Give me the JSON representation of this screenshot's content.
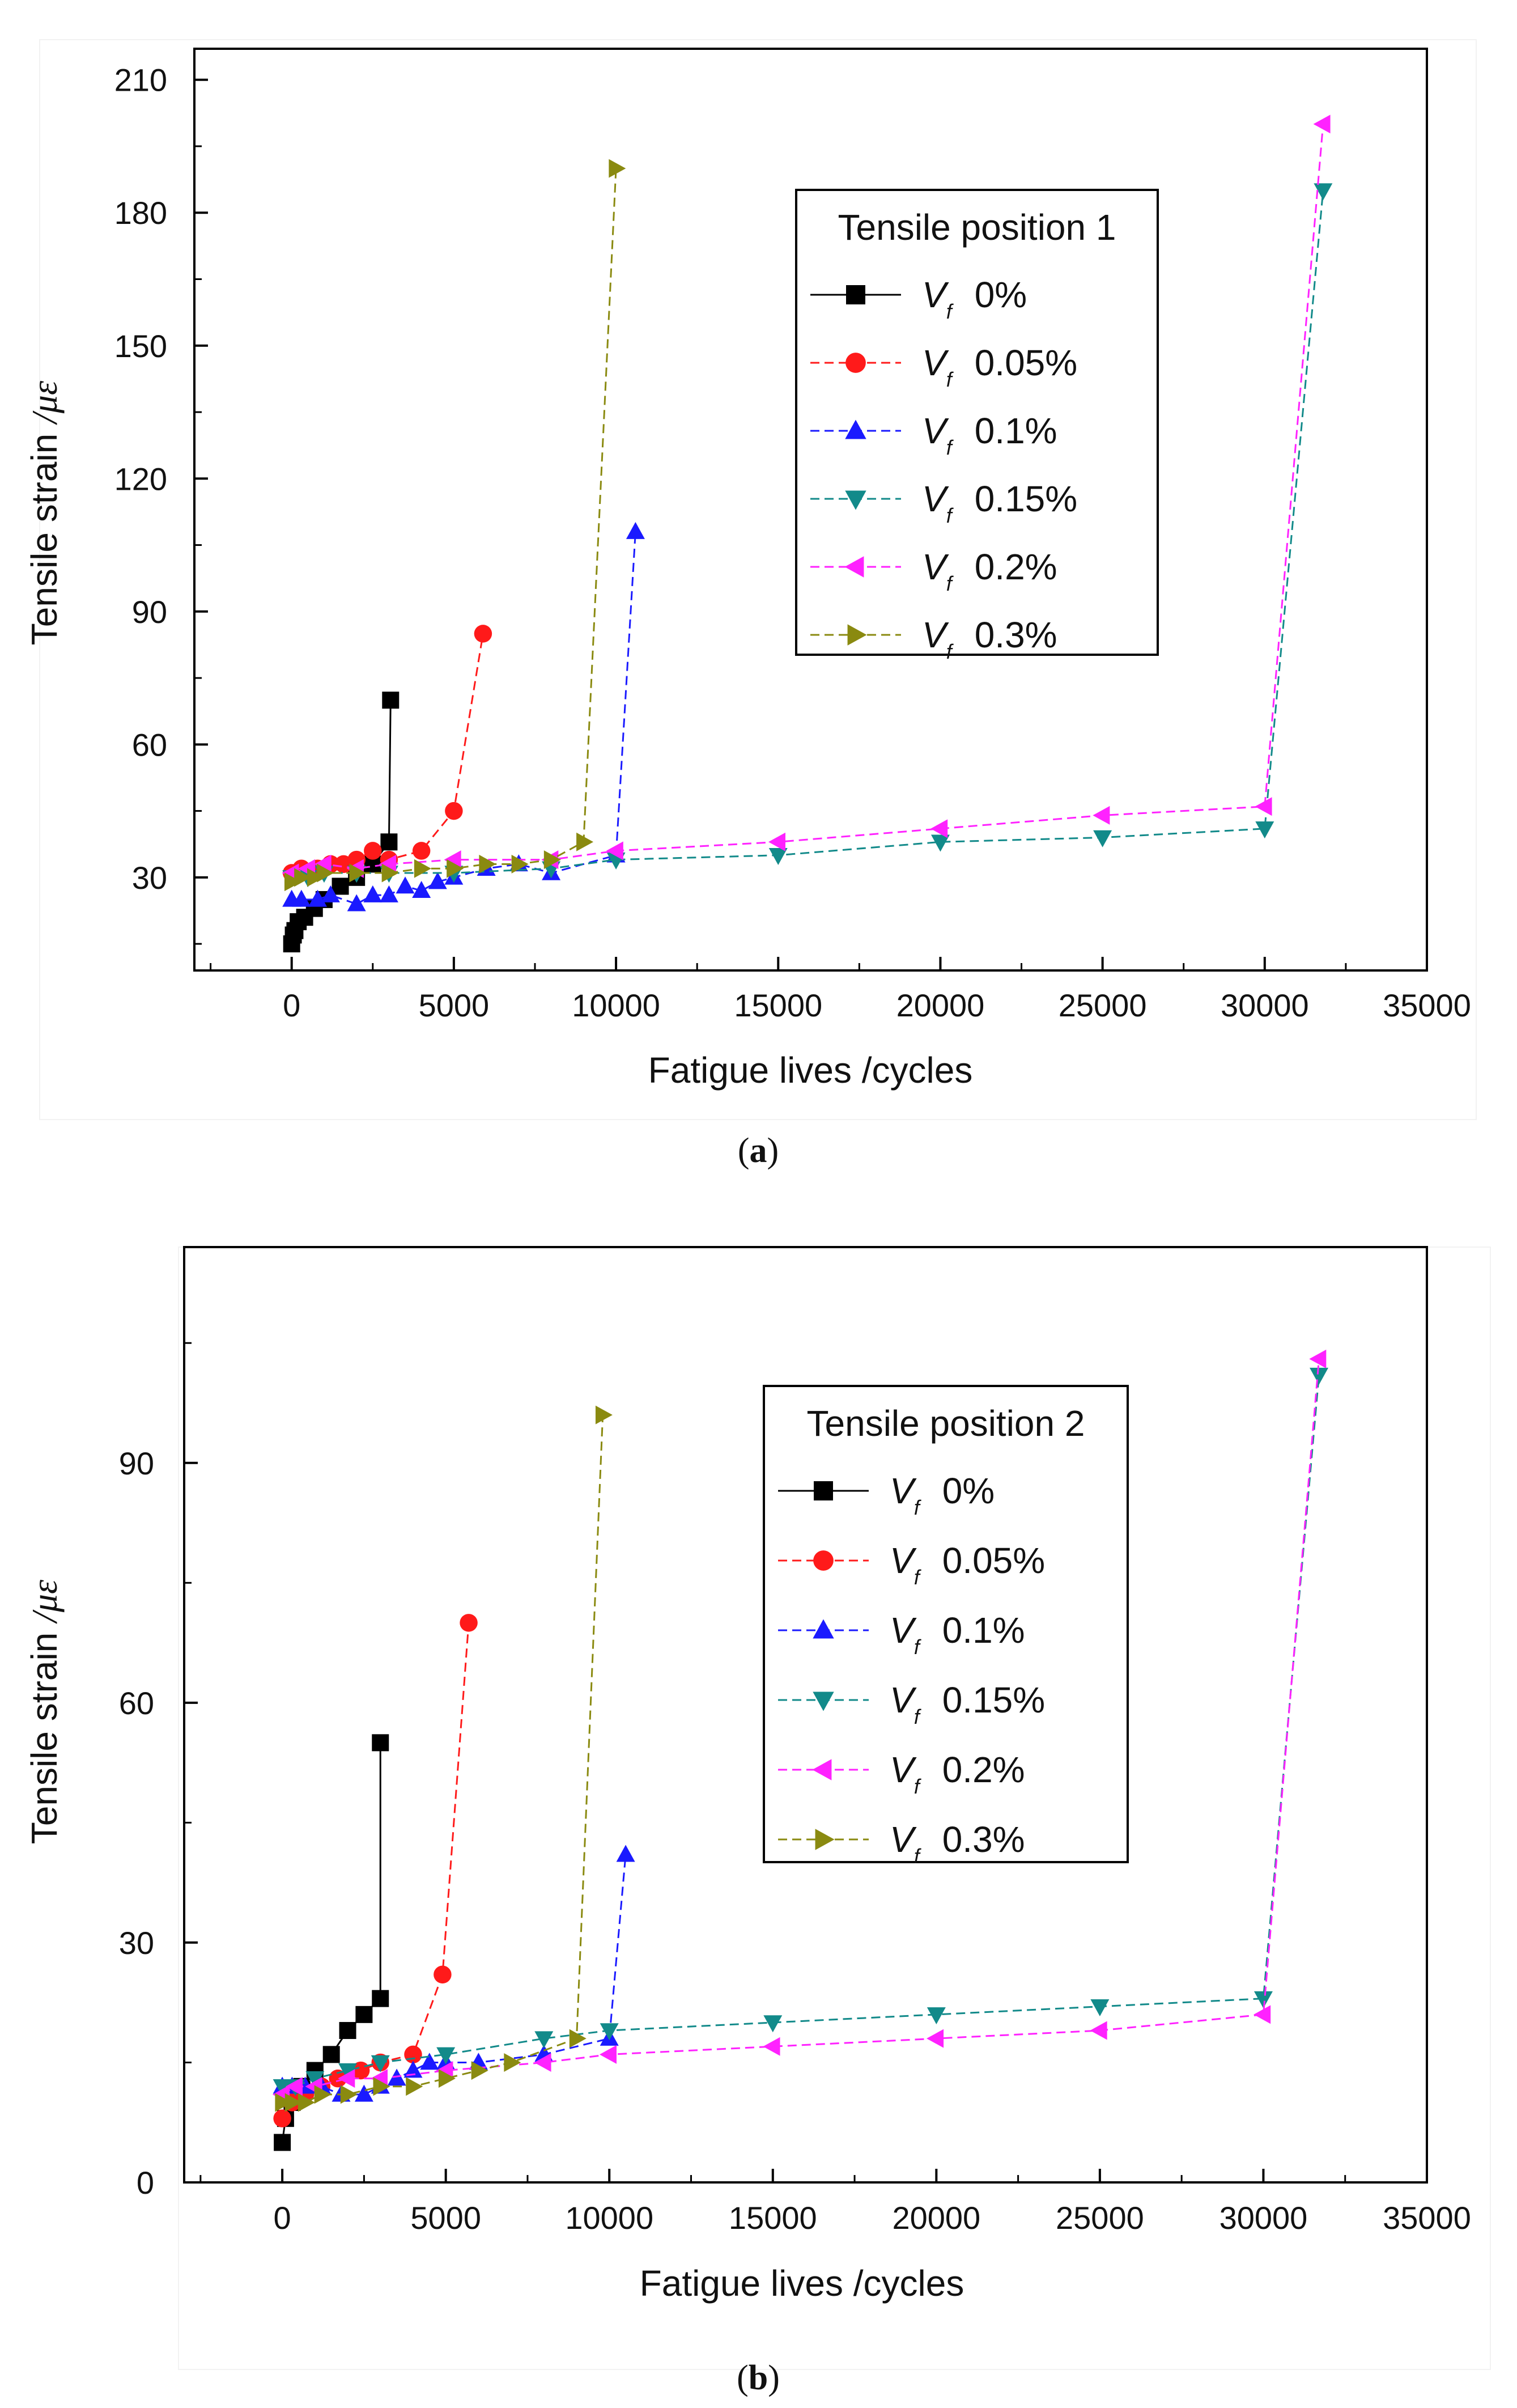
{
  "figure": {
    "colors": {
      "black": "#000000",
      "red": "#ff1a1a",
      "blue": "#1a1aff",
      "teal": "#128a8a",
      "magenta": "#ff22ff",
      "olive": "#8a8a10"
    }
  },
  "chart_data": [
    {
      "type": "line",
      "caption": "(a)",
      "title": "",
      "xlabel": "Fatigue lives   /cycles",
      "ylabel_text": "Tensile strain",
      "ylabel_unit": "/με",
      "xlim": [
        -3000,
        35000
      ],
      "ylim": [
        9,
        217
      ],
      "xticks": [
        0,
        5000,
        10000,
        15000,
        20000,
        25000,
        30000,
        35000
      ],
      "yticks": [
        30,
        60,
        90,
        120,
        150,
        180,
        210
      ],
      "legend": {
        "title": "Tensile position 1",
        "position": "top-right"
      },
      "series": [
        {
          "name": "0%",
          "vf": "V",
          "vf_sub": "f",
          "marker": "square",
          "dash": "solid",
          "color": "#000000",
          "x": [
            0,
            50,
            100,
            200,
            400,
            700,
            1000,
            1500,
            2000,
            2500,
            3000,
            3050
          ],
          "y": [
            15,
            17,
            18,
            20,
            21,
            23,
            25,
            28,
            30,
            33,
            38,
            70
          ]
        },
        {
          "name": "0.05%",
          "vf": "V",
          "vf_sub": "f",
          "marker": "circle",
          "dash": "dash",
          "color": "#ff1a1a",
          "x": [
            0,
            300,
            800,
            1200,
            1600,
            2000,
            2500,
            3000,
            4000,
            5000,
            5900
          ],
          "y": [
            31,
            32,
            32,
            33,
            33,
            34,
            36,
            34,
            36,
            45,
            85
          ]
        },
        {
          "name": "0.1%",
          "vf": "V",
          "vf_sub": "f",
          "marker": "triangle-up",
          "dash": "dash",
          "color": "#1a1aff",
          "x": [
            0,
            300,
            800,
            1200,
            2000,
            2500,
            3000,
            3500,
            4000,
            4500,
            5000,
            6000,
            7000,
            8000,
            10000,
            10600
          ],
          "y": [
            25,
            25,
            25,
            26,
            24,
            26,
            26,
            28,
            27,
            29,
            30,
            32,
            33,
            31,
            35,
            108
          ]
        },
        {
          "name": "0.15%",
          "vf": "V",
          "vf_sub": "f",
          "marker": "triangle-down",
          "dash": "dash",
          "color": "#128a8a",
          "x": [
            0,
            500,
            1000,
            2000,
            3000,
            5000,
            8000,
            10000,
            15000,
            20000,
            25000,
            30000,
            31800
          ],
          "y": [
            30,
            30,
            31,
            31,
            31,
            31,
            32,
            34,
            35,
            38,
            39,
            41,
            185
          ]
        },
        {
          "name": "0.2%",
          "vf": "V",
          "vf_sub": "f",
          "marker": "triangle-left",
          "dash": "dash",
          "color": "#ff22ff",
          "x": [
            0,
            500,
            1000,
            2000,
            3000,
            5000,
            8000,
            10000,
            15000,
            20000,
            25000,
            30000,
            31800
          ],
          "y": [
            31,
            32,
            33,
            32,
            33,
            34,
            34,
            36,
            38,
            41,
            44,
            46,
            200
          ]
        },
        {
          "name": "0.3%",
          "vf": "V",
          "vf_sub": "f",
          "marker": "triangle-right",
          "dash": "dash",
          "color": "#8a8a10",
          "x": [
            0,
            300,
            700,
            1000,
            2000,
            3000,
            4000,
            5000,
            6000,
            7000,
            8000,
            9000,
            10000
          ],
          "y": [
            29,
            30,
            30,
            31,
            31,
            31,
            32,
            32,
            33,
            33,
            34,
            38,
            190
          ]
        }
      ]
    },
    {
      "type": "line",
      "caption": "(b)",
      "title": "",
      "xlabel": "Fatigue lives   /cycles",
      "ylabel_text": "Tensile strain",
      "ylabel_unit": "/με",
      "xlim": [
        -3000,
        35000
      ],
      "ylim": [
        0,
        117
      ],
      "xticks": [
        0,
        5000,
        10000,
        15000,
        20000,
        25000,
        30000,
        35000
      ],
      "yticks": [
        0,
        30,
        60,
        90
      ],
      "legend": {
        "title": "Tensile position 2",
        "position": "top-right"
      },
      "series": [
        {
          "name": "0%",
          "vf": "V",
          "vf_sub": "f",
          "marker": "square",
          "dash": "solid",
          "color": "#000000",
          "x": [
            0,
            100,
            300,
            600,
            1000,
            1500,
            2000,
            2500,
            3000,
            3000
          ],
          "y": [
            5,
            8,
            10,
            12,
            14,
            16,
            19,
            21,
            23,
            55
          ]
        },
        {
          "name": "0.05%",
          "vf": "V",
          "vf_sub": "f",
          "marker": "circle",
          "dash": "dash",
          "color": "#ff1a1a",
          "x": [
            0,
            300,
            700,
            1200,
            1700,
            2400,
            3000,
            4000,
            4900,
            5700
          ],
          "y": [
            8,
            10,
            11,
            12,
            13,
            14,
            15,
            16,
            26,
            70
          ]
        },
        {
          "name": "0.1%",
          "vf": "V",
          "vf_sub": "f",
          "marker": "triangle-up",
          "dash": "dash",
          "color": "#1a1aff",
          "x": [
            0,
            300,
            700,
            1200,
            1800,
            2500,
            3000,
            3500,
            4000,
            4500,
            5000,
            6000,
            8000,
            10000,
            10500
          ],
          "y": [
            12,
            12,
            12,
            12,
            11,
            11,
            12,
            13,
            14,
            15,
            15,
            15,
            16,
            18,
            41
          ]
        },
        {
          "name": "0.15%",
          "vf": "V",
          "vf_sub": "f",
          "marker": "triangle-down",
          "dash": "dash",
          "color": "#128a8a",
          "x": [
            0,
            400,
            1000,
            2000,
            3000,
            5000,
            8000,
            10000,
            15000,
            20000,
            25000,
            30000,
            31700
          ],
          "y": [
            12,
            12,
            13,
            14,
            15,
            16,
            18,
            19,
            20,
            21,
            22,
            23,
            101
          ]
        },
        {
          "name": "0.2%",
          "vf": "V",
          "vf_sub": "f",
          "marker": "triangle-left",
          "dash": "dash",
          "color": "#ff22ff",
          "x": [
            0,
            400,
            1000,
            2000,
            3000,
            5000,
            8000,
            10000,
            15000,
            20000,
            25000,
            30000,
            31700
          ],
          "y": [
            11,
            12,
            12,
            13,
            13,
            14,
            15,
            16,
            17,
            18,
            19,
            21,
            103
          ]
        },
        {
          "name": "0.3%",
          "vf": "V",
          "vf_sub": "f",
          "marker": "triangle-right",
          "dash": "dash",
          "color": "#8a8a10",
          "x": [
            0,
            300,
            700,
            1200,
            2000,
            3000,
            4000,
            5000,
            6000,
            7000,
            9000,
            9800
          ],
          "y": [
            10,
            10,
            10,
            11,
            11,
            12,
            12,
            13,
            14,
            15,
            18,
            96
          ]
        }
      ]
    }
  ]
}
